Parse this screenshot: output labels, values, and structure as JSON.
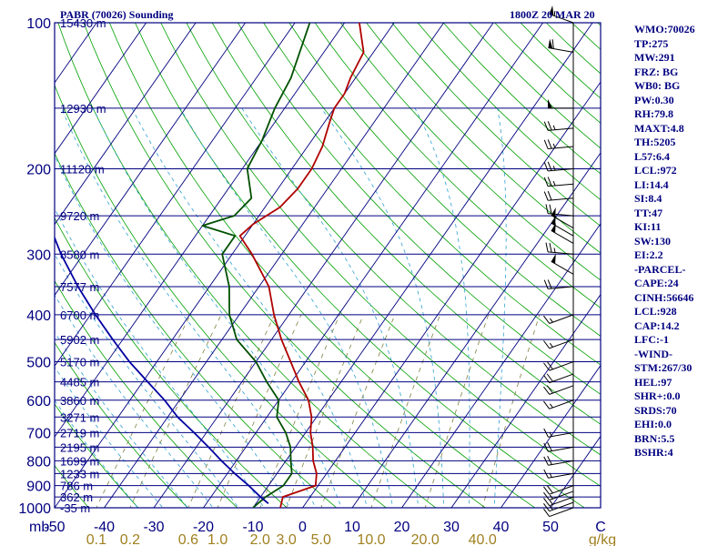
{
  "header": {
    "title_left": "PABR (70026) Sounding",
    "title_right": "1800Z 20 MAR 20"
  },
  "stats": [
    "WMO:70026",
    "TP:275",
    "MW:291",
    "FRZ: BG",
    "WB0: BG",
    "PW:0.30",
    "RH:79.8",
    "MAXT:4.8",
    "TH:5205",
    "L57:6.4",
    "LCL:972",
    "LI:14.4",
    "SI:8.4",
    "TT:47",
    "KI:11",
    "SW:130",
    "EI:2.2",
    "-PARCEL-",
    "CAPE:24",
    "CINH:56646",
    "LCL:928",
    "CAP:14.2",
    "LFC:-1",
    "-WIND-",
    "STM:267/30",
    "HEL:97",
    "SHR+:0.0",
    "SRDS:70",
    "EHI:0.0",
    "BRN:5.5",
    "BSHR:4"
  ],
  "colors": {
    "isobar": "#000080",
    "isotherm": "#000080",
    "dry_adiabat": "#00a000",
    "moist_adiabat": "#30a0d0",
    "mixing_ratio": "#808040",
    "temperature": "#b00000",
    "dewpoint": "#005000",
    "parcel": "#0000a0",
    "wind_barb": "#000000"
  },
  "chart_data": {
    "type": "line",
    "diagram": "skew-t",
    "pressure_axis": {
      "units": "mb",
      "scale": "log",
      "range": [
        1000,
        100
      ],
      "labels": [
        "100",
        "200",
        "300",
        "400",
        "500",
        "600",
        "700",
        "800",
        "900",
        "1000"
      ]
    },
    "temperature_axis": {
      "units": "C",
      "range": [
        -50,
        50
      ],
      "labels": [
        "-50",
        "-40",
        "-30",
        "-20",
        "-10",
        "0",
        "10",
        "20",
        "30",
        "40",
        "50"
      ]
    },
    "mixing_ratio_axis": {
      "units": "g/kg",
      "labels": [
        "0.1",
        "0.2",
        "0.6",
        "1.0",
        "2.0",
        "3.0",
        "5.0",
        "10.0",
        "20.0",
        "40.0"
      ]
    },
    "heights": [
      {
        "p": 100,
        "label": "15430 m"
      },
      {
        "p": 150,
        "label": "12930 m"
      },
      {
        "p": 200,
        "label": "11120 m"
      },
      {
        "p": 250,
        "label": "9720 m"
      },
      {
        "p": 300,
        "label": "8580 m"
      },
      {
        "p": 350,
        "label": "7577 m"
      },
      {
        "p": 400,
        "label": "6700 m"
      },
      {
        "p": 450,
        "label": "5902 m"
      },
      {
        "p": 500,
        "label": "5170 m"
      },
      {
        "p": 550,
        "label": "4485 m"
      },
      {
        "p": 600,
        "label": "3860 m"
      },
      {
        "p": 650,
        "label": "3271 m"
      },
      {
        "p": 700,
        "label": "2719 m"
      },
      {
        "p": 750,
        "label": "2195 m"
      },
      {
        "p": 800,
        "label": "1699 m"
      },
      {
        "p": 850,
        "label": "1233 m"
      },
      {
        "p": 900,
        "label": "786 m"
      },
      {
        "p": 950,
        "label": "362 m"
      },
      {
        "p": 1000,
        "label": "-35 m"
      }
    ],
    "series": [
      {
        "key": "temperature",
        "points": [
          {
            "p": 999,
            "t": -4.5
          },
          {
            "p": 950,
            "t": -5.5
          },
          {
            "p": 900,
            "t": -0.5
          },
          {
            "p": 850,
            "t": -2
          },
          {
            "p": 800,
            "t": -4.5
          },
          {
            "p": 750,
            "t": -6.5
          },
          {
            "p": 700,
            "t": -9
          },
          {
            "p": 650,
            "t": -11
          },
          {
            "p": 600,
            "t": -14
          },
          {
            "p": 550,
            "t": -18.5
          },
          {
            "p": 500,
            "t": -23
          },
          {
            "p": 450,
            "t": -28
          },
          {
            "p": 400,
            "t": -33
          },
          {
            "p": 350,
            "t": -38
          },
          {
            "p": 300,
            "t": -46
          },
          {
            "p": 275,
            "t": -51
          },
          {
            "p": 260,
            "t": -50
          },
          {
            "p": 240,
            "t": -47
          },
          {
            "p": 220,
            "t": -46
          },
          {
            "p": 200,
            "t": -46
          },
          {
            "p": 180,
            "t": -47
          },
          {
            "p": 160,
            "t": -49
          },
          {
            "p": 150,
            "t": -50
          },
          {
            "p": 140,
            "t": -50
          },
          {
            "p": 130,
            "t": -51
          },
          {
            "p": 115,
            "t": -52
          },
          {
            "p": 100,
            "t": -57
          }
        ]
      },
      {
        "key": "dewpoint",
        "points": [
          {
            "p": 999,
            "t": -10
          },
          {
            "p": 950,
            "t": -9
          },
          {
            "p": 900,
            "t": -7
          },
          {
            "p": 850,
            "t": -7
          },
          {
            "p": 800,
            "t": -9
          },
          {
            "p": 750,
            "t": -11
          },
          {
            "p": 700,
            "t": -14
          },
          {
            "p": 650,
            "t": -18
          },
          {
            "p": 600,
            "t": -20
          },
          {
            "p": 550,
            "t": -25
          },
          {
            "p": 500,
            "t": -30
          },
          {
            "p": 450,
            "t": -37
          },
          {
            "p": 400,
            "t": -42
          },
          {
            "p": 350,
            "t": -46
          },
          {
            "p": 300,
            "t": -52
          },
          {
            "p": 275,
            "t": -52
          },
          {
            "p": 262,
            "t": -60
          },
          {
            "p": 250,
            "t": -55
          },
          {
            "p": 230,
            "t": -54
          },
          {
            "p": 200,
            "t": -59
          },
          {
            "p": 175,
            "t": -60
          },
          {
            "p": 150,
            "t": -62
          },
          {
            "p": 130,
            "t": -63
          },
          {
            "p": 100,
            "t": -67
          }
        ]
      },
      {
        "key": "parcel",
        "points": [
          {
            "p": 980,
            "t": -7.5
          },
          {
            "p": 950,
            "t": -10
          },
          {
            "p": 900,
            "t": -14
          },
          {
            "p": 850,
            "t": -18.5
          },
          {
            "p": 800,
            "t": -23
          },
          {
            "p": 750,
            "t": -27.5
          },
          {
            "p": 700,
            "t": -32.5
          },
          {
            "p": 650,
            "t": -38
          },
          {
            "p": 600,
            "t": -43
          },
          {
            "p": 550,
            "t": -49
          },
          {
            "p": 500,
            "t": -55.5
          },
          {
            "p": 450,
            "t": -62
          },
          {
            "p": 400,
            "t": -69
          },
          {
            "p": 350,
            "t": -76.5
          },
          {
            "p": 300,
            "t": -84.5
          },
          {
            "p": 250,
            "t": -93
          },
          {
            "p": 200,
            "t": -103
          },
          {
            "p": 150,
            "t": -114
          },
          {
            "p": 125,
            "t": -121
          }
        ]
      }
    ],
    "wind": [
      {
        "p": 100,
        "dir": 290,
        "spd": 55
      },
      {
        "p": 115,
        "dir": 280,
        "spd": 60
      },
      {
        "p": 150,
        "dir": 270,
        "spd": 50
      },
      {
        "p": 165,
        "dir": 265,
        "spd": 25
      },
      {
        "p": 180,
        "dir": 265,
        "spd": 25
      },
      {
        "p": 200,
        "dir": 265,
        "spd": 25
      },
      {
        "p": 215,
        "dir": 265,
        "spd": 25
      },
      {
        "p": 230,
        "dir": 265,
        "spd": 20
      },
      {
        "p": 250,
        "dir": 275,
        "spd": 20
      },
      {
        "p": 265,
        "dir": 300,
        "spd": 50
      },
      {
        "p": 275,
        "dir": 300,
        "spd": 50
      },
      {
        "p": 285,
        "dir": 300,
        "spd": 50
      },
      {
        "p": 300,
        "dir": 275,
        "spd": 25
      },
      {
        "p": 330,
        "dir": 300,
        "spd": 50
      },
      {
        "p": 350,
        "dir": 265,
        "spd": 20
      },
      {
        "p": 400,
        "dir": 250,
        "spd": 15
      },
      {
        "p": 450,
        "dir": 250,
        "spd": 15
      },
      {
        "p": 500,
        "dir": 250,
        "spd": 20
      },
      {
        "p": 530,
        "dir": 250,
        "spd": 20
      },
      {
        "p": 560,
        "dir": 250,
        "spd": 20
      },
      {
        "p": 600,
        "dir": 250,
        "spd": 15
      },
      {
        "p": 700,
        "dir": 260,
        "spd": 15
      },
      {
        "p": 750,
        "dir": 260,
        "spd": 20
      },
      {
        "p": 800,
        "dir": 260,
        "spd": 20
      },
      {
        "p": 850,
        "dir": 260,
        "spd": 15
      },
      {
        "p": 900,
        "dir": 250,
        "spd": 20
      },
      {
        "p": 925,
        "dir": 250,
        "spd": 15
      },
      {
        "p": 950,
        "dir": 250,
        "spd": 15
      },
      {
        "p": 975,
        "dir": 250,
        "spd": 15
      },
      {
        "p": 1000,
        "dir": 250,
        "spd": 10
      }
    ]
  }
}
